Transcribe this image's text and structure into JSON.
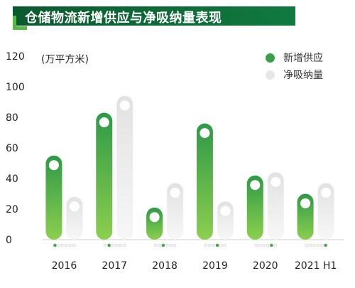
{
  "title": "仓储物流新增供应与净吸纳量表现",
  "chart_data": {
    "type": "bar",
    "unit": "(万平方米)",
    "categories": [
      "2016",
      "2017",
      "2018",
      "2019",
      "2020",
      "2021 H1"
    ],
    "series": [
      {
        "name": "新增供应",
        "values": [
          55,
          83,
          21,
          76,
          42,
          30
        ],
        "color": "#3aa14b"
      },
      {
        "name": "净吸纳量",
        "values": [
          28,
          94,
          37,
          25,
          44,
          37
        ],
        "color": "#e6e6e6"
      }
    ],
    "ylim": [
      0,
      120
    ],
    "yticks": [
      0,
      20,
      40,
      60,
      80,
      100,
      120
    ],
    "legend_position": "top-right",
    "grid": false
  }
}
